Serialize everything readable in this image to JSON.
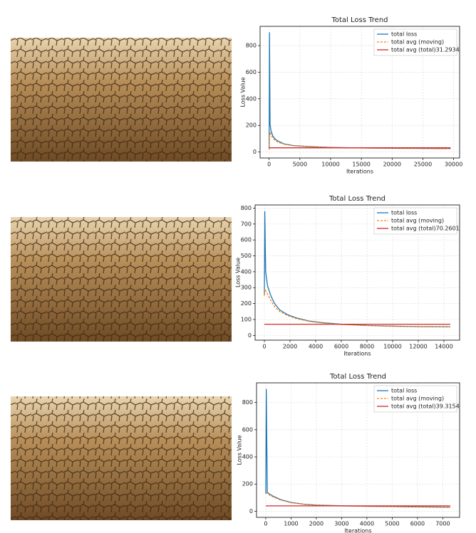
{
  "chart_data": [
    {
      "type": "line",
      "title": "Total Loss Trend",
      "x_label": "Iterations",
      "y_label": "Loss Value",
      "x": [
        0,
        50,
        150,
        300,
        600,
        1000,
        1500,
        2500,
        4000,
        6000,
        8000,
        10000,
        13000,
        16000,
        20000,
        24000,
        27000,
        29500
      ],
      "series": [
        {
          "name": "total loss",
          "color": "#1f77b4",
          "dash": false,
          "values": [
            20,
            900,
            210,
            160,
            120,
            95,
            80,
            60,
            48,
            42,
            38,
            35,
            32,
            30,
            28,
            27,
            26,
            25
          ]
        },
        {
          "name": "total avg (moving)",
          "color": "#ff7f0e",
          "dash": true,
          "values": [
            20,
            120,
            150,
            130,
            105,
            85,
            72,
            58,
            47,
            41,
            37,
            34,
            31,
            30,
            28,
            27,
            26,
            25
          ]
        },
        {
          "name": "total avg (total)31.2934",
          "color": "#d62728",
          "dash": false,
          "values": [
            31.2934,
            31.2934,
            31.2934,
            31.2934,
            31.2934,
            31.2934,
            31.2934,
            31.2934,
            31.2934,
            31.2934,
            31.2934,
            31.2934,
            31.2934,
            31.2934,
            31.2934,
            31.2934,
            31.2934,
            31.2934
          ]
        }
      ],
      "xlim": [
        -1475,
        30975
      ],
      "ylim": [
        -45,
        945
      ],
      "xticks": [
        0,
        5000,
        10000,
        15000,
        20000,
        25000,
        30000
      ],
      "yticks": [
        0,
        200,
        400,
        600,
        800
      ],
      "grid": true,
      "legend": "upper right"
    },
    {
      "type": "line",
      "title": "Total Loss Trend",
      "x_label": "Iterations",
      "y_label": "Loss Value",
      "x": [
        0,
        30,
        100,
        250,
        500,
        800,
        1200,
        1800,
        2500,
        3500,
        4500,
        6000,
        8000,
        10000,
        12000,
        14500
      ],
      "series": [
        {
          "name": "total loss",
          "color": "#1f77b4",
          "dash": false,
          "values": [
            250,
            780,
            400,
            310,
            250,
            200,
            160,
            130,
            110,
            90,
            80,
            70,
            62,
            58,
            55,
            54
          ]
        },
        {
          "name": "total avg (moving)",
          "color": "#ff7f0e",
          "dash": true,
          "values": [
            250,
            290,
            280,
            260,
            220,
            180,
            150,
            125,
            105,
            88,
            78,
            68,
            62,
            57,
            55,
            54
          ]
        },
        {
          "name": "total avg (total)70.2601",
          "color": "#d62728",
          "dash": false,
          "values": [
            70.2601,
            70.2601,
            70.2601,
            70.2601,
            70.2601,
            70.2601,
            70.2601,
            70.2601,
            70.2601,
            70.2601,
            70.2601,
            70.2601,
            70.2601,
            70.2601,
            70.2601,
            70.2601
          ]
        }
      ],
      "xlim": [
        -725,
        15225
      ],
      "ylim": [
        -30,
        820
      ],
      "xticks": [
        0,
        2000,
        4000,
        6000,
        8000,
        10000,
        12000,
        14000
      ],
      "yticks": [
        0,
        100,
        200,
        300,
        400,
        500,
        600,
        700,
        800
      ],
      "grid": true,
      "legend": "upper right"
    },
    {
      "type": "line",
      "title": "Total Loss Trend",
      "x_label": "Iterations",
      "y_label": "Loss Value",
      "x": [
        0,
        20,
        60,
        150,
        300,
        600,
        1000,
        1500,
        2000,
        3000,
        4000,
        5000,
        6000,
        7300
      ],
      "series": [
        {
          "name": "total loss",
          "color": "#1f77b4",
          "dash": false,
          "values": [
            130,
            900,
            140,
            125,
            110,
            85,
            65,
            52,
            45,
            40,
            36,
            34,
            32,
            30
          ]
        },
        {
          "name": "total avg (moving)",
          "color": "#ff7f0e",
          "dash": true,
          "values": [
            130,
            135,
            130,
            120,
            105,
            82,
            63,
            51,
            44,
            39,
            36,
            34,
            32,
            30
          ]
        },
        {
          "name": "total avg (total)39.3154",
          "color": "#d62728",
          "dash": false,
          "values": [
            39.3154,
            39.3154,
            39.3154,
            39.3154,
            39.3154,
            39.3154,
            39.3154,
            39.3154,
            39.3154,
            39.3154,
            39.3154,
            39.3154,
            39.3154,
            39.3154
          ]
        }
      ],
      "xlim": [
        -365,
        7665
      ],
      "ylim": [
        -45,
        945
      ],
      "xticks": [
        0,
        1000,
        2000,
        3000,
        4000,
        5000,
        6000,
        7000
      ],
      "yticks": [
        0,
        200,
        400,
        600,
        800
      ],
      "grid": true,
      "legend": "upper right"
    }
  ]
}
